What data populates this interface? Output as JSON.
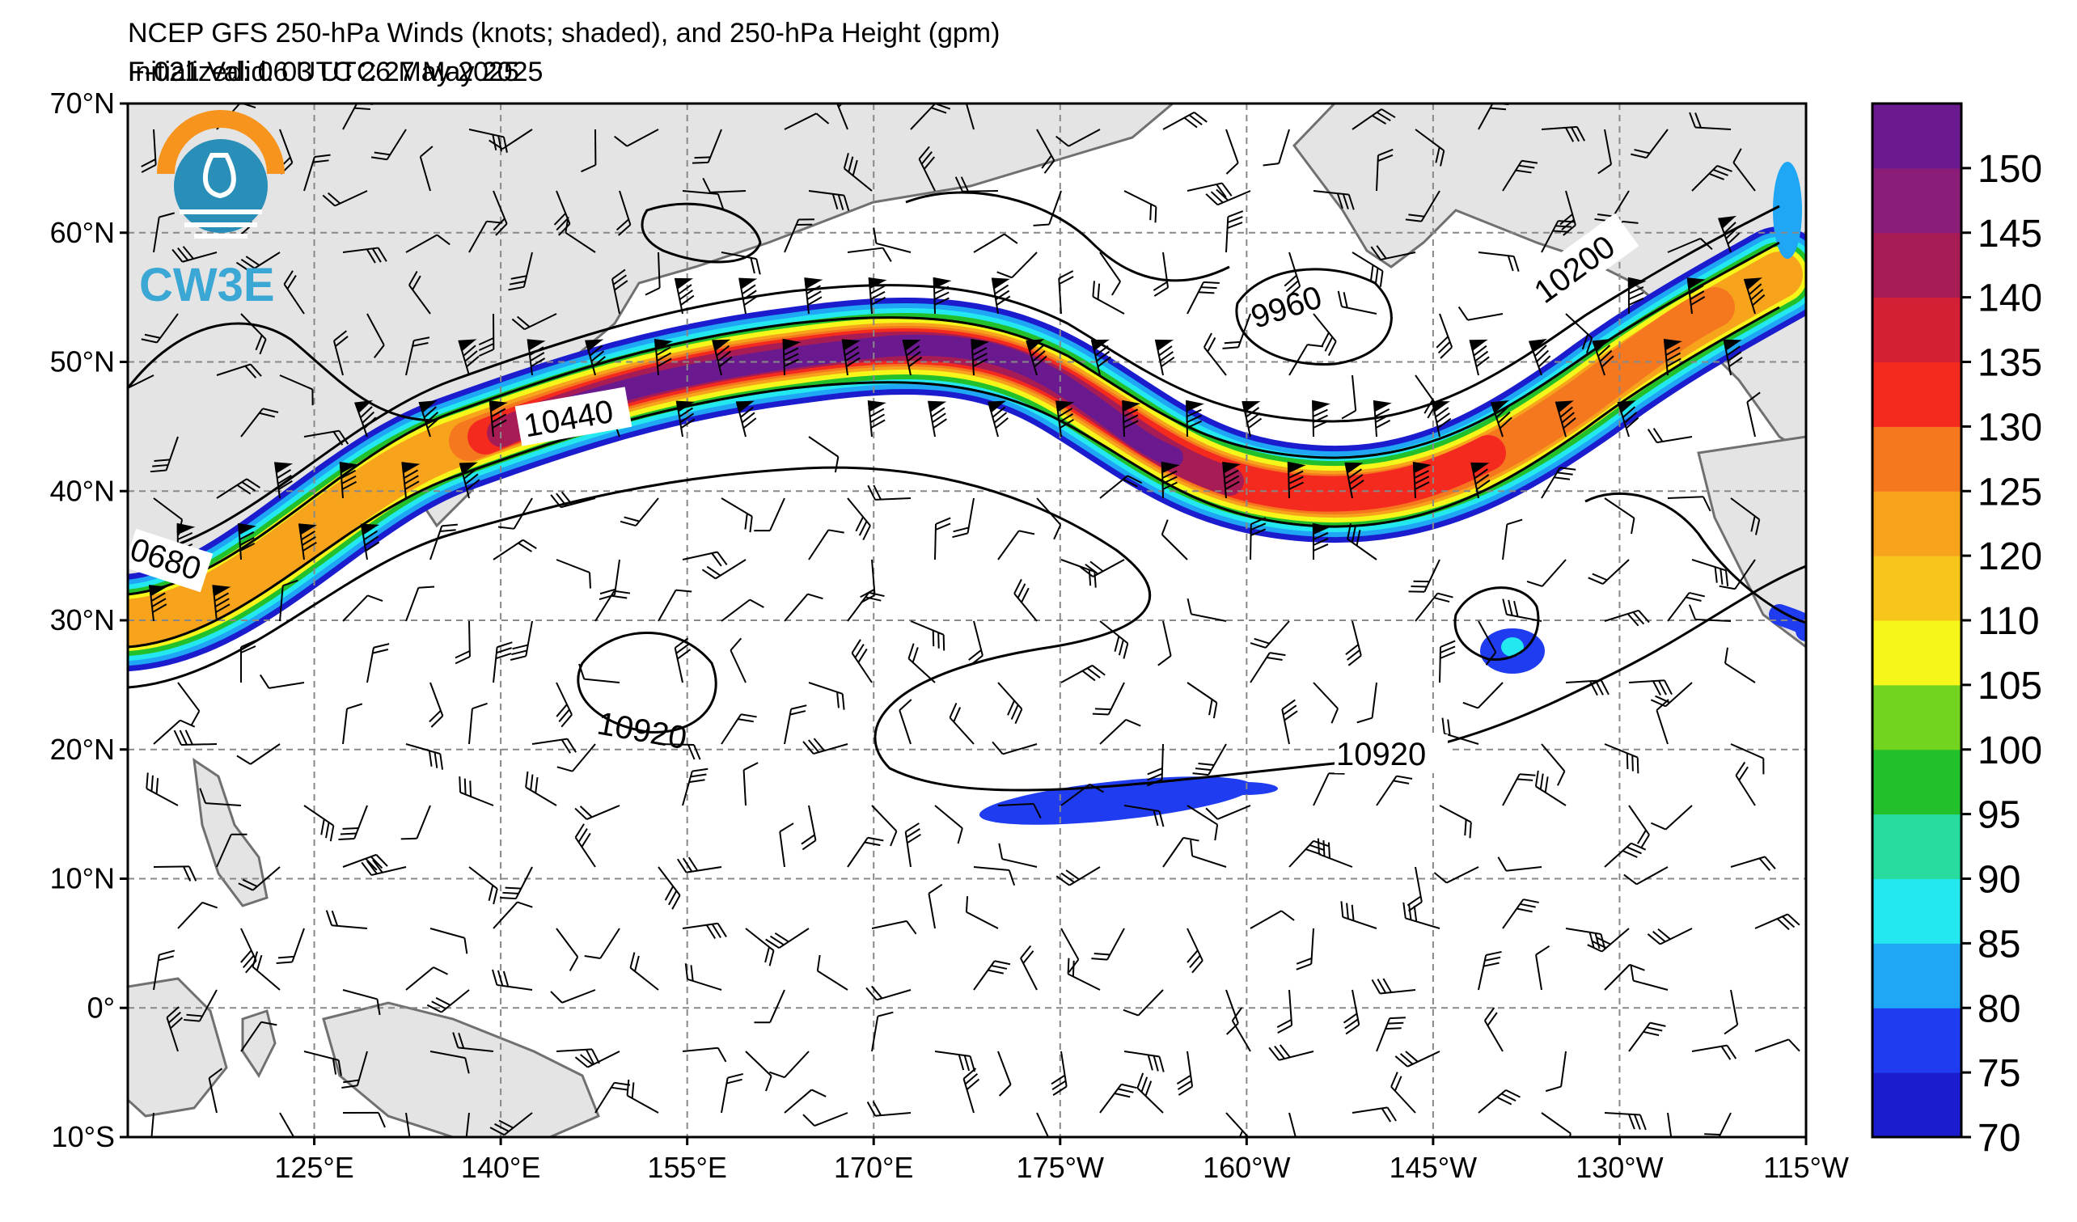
{
  "header": {
    "title": "NCEP GFS 250-hPa Winds (knots; shaded), and 250-hPa Height (gpm)",
    "initialized": "Initialized: 06 UTC 26 May 2025",
    "valid": "F-021  Valid: 03 UTC 27 May 2025"
  },
  "logo": {
    "text": "CW3E",
    "colors": {
      "arc": "#f7941d",
      "disc": "#2a8fb8",
      "text": "#3aa7d4"
    }
  },
  "map": {
    "lat_labels": [
      "70°N",
      "60°N",
      "50°N",
      "40°N",
      "30°N",
      "20°N",
      "10°N",
      "0°",
      "10°S"
    ],
    "lon_labels": [
      "125°E",
      "140°E",
      "155°E",
      "170°E",
      "175°W",
      "160°W",
      "145°W",
      "130°W",
      "115°W"
    ],
    "contour_labels": [
      "10440",
      "0680",
      "9960",
      "10200",
      "10920",
      "10920"
    ]
  },
  "colorbar": {
    "labels": [
      "70",
      "75",
      "80",
      "85",
      "90",
      "95",
      "100",
      "105",
      "110",
      "120",
      "125",
      "130",
      "135",
      "140",
      "145",
      "150"
    ],
    "colors": [
      "#1c1ccf",
      "#1f3cf0",
      "#1fa6f5",
      "#24e8f0",
      "#28dca0",
      "#22c02a",
      "#72d41e",
      "#f6f61a",
      "#f7c61b",
      "#f7a41c",
      "#f5771e",
      "#f52a1e",
      "#d42034",
      "#a81c55",
      "#8a1d78",
      "#6a1a8e"
    ]
  }
}
